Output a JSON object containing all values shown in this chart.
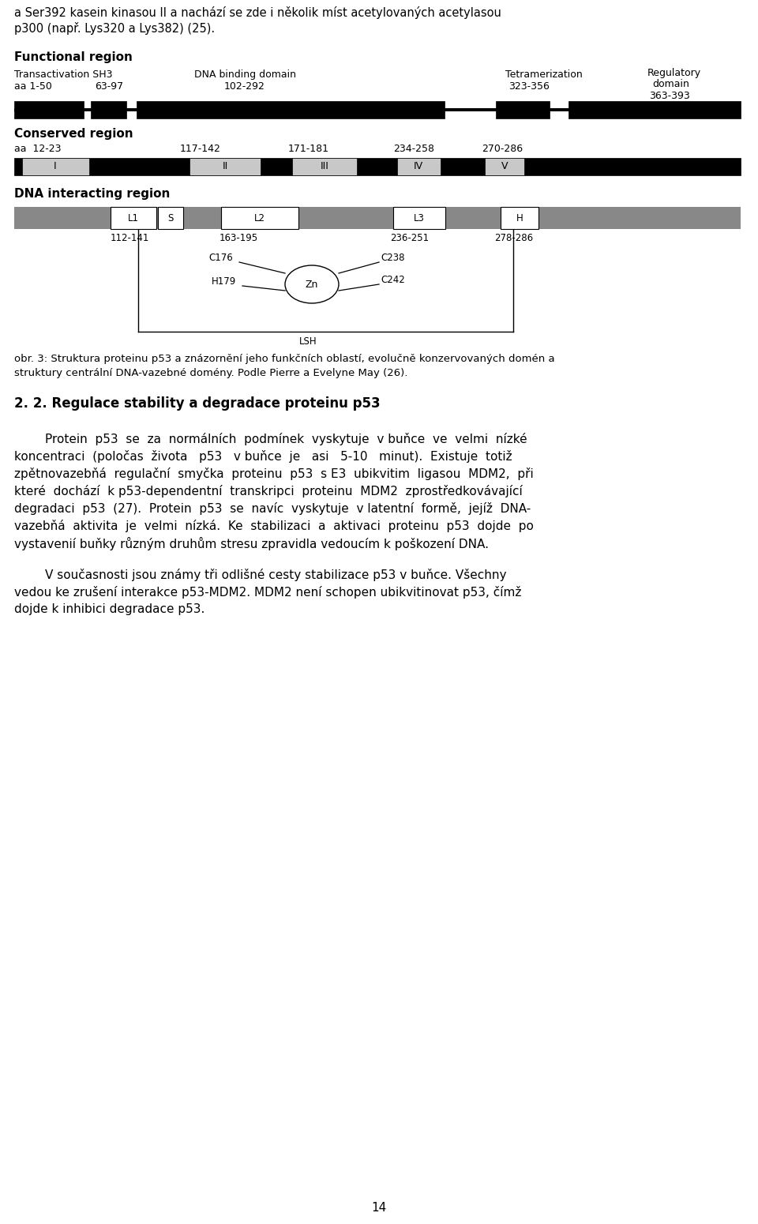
{
  "background_color": "#ffffff",
  "page_number": "14",
  "top_line1": "a Ser392 kasein kinasou II a nachází se zde i několik míst acetylovaných acetylasou",
  "top_line2": "p300 (např. Lys320 a Lys382) (25).",
  "func_label": "Functional region",
  "cons_label": "Conserved region",
  "dna_label": "DNA interacting region",
  "caption1": "obr. 3: Struktura proteinu p53 a znázornění jeho funkčních oblastí, evolučně konzervovaných domén a",
  "caption2": "struktury centrální DNA-vazebné domény. Podle Pierre a Evelyne May (26).",
  "heading": "2. 2. Regulace stability a degradace proteinu p53",
  "p1_lines": [
    "        Protein  p53  se  za  normálních  podmínek  vyskytuje  v buňce  ve  velmi  nízké",
    "koncentraci  (poločas  života   p53   v buňce  je   asi   5-10   minut).  Existuje  totiž",
    "zpětnovazebňá  regulační  smyčka  proteinu  p53  s E3  ubikvitim  ligasou  MDM2,  při",
    "které  dochází  k p53-dependentní  transkripci  proteinu  MDM2  zprostředkovávající",
    "degradaci  p53  (27).  Protein  p53  se  navíc  vyskytuje  v latentní  formě,  jejíž  DNA-",
    "vazebňá  aktivita  je  velmi  nízká.  Ke  stabilizaci  a  aktivaci  proteinu  p53  dojde  po",
    "vystavenií buňky různým druhům stresu zpravidla vedoucím k poškození DNA."
  ],
  "p2_lines": [
    "        V současnosti jsou známy tři odlišné cesty stabilizace p53 v buňce. Všechny",
    "vedou ke zrušení interakce p53-MDM2. MDM2 není schopen ubikvitinovat p53, čímž",
    "dojde k inhibici degradace p53."
  ]
}
